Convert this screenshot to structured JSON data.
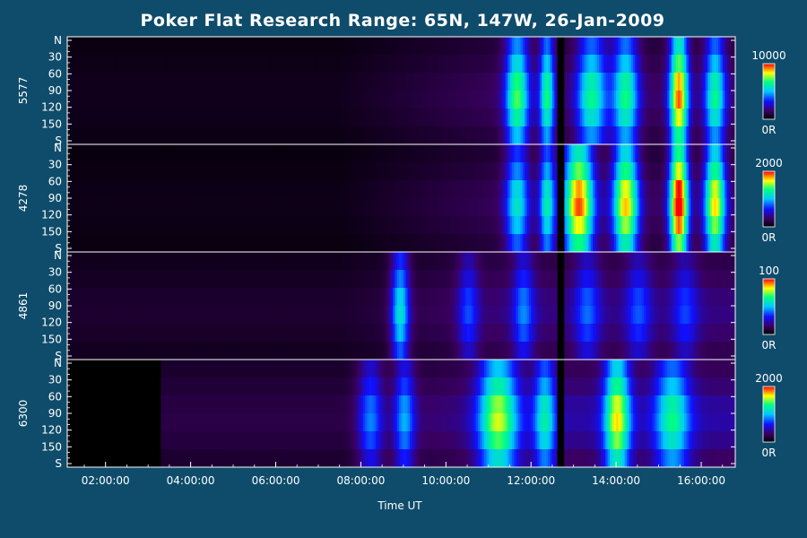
{
  "chart_data": {
    "type": "heatmap",
    "title": "Poker Flat Research Range: 65N, 147W, 26-Jan-2009",
    "xlabel": "Time UT",
    "x_ticks": [
      "02:00:00",
      "04:00:00",
      "06:00:00",
      "08:00:00",
      "10:00:00",
      "12:00:00",
      "14:00:00",
      "16:00:00"
    ],
    "x_tick_hours": [
      2,
      4,
      6,
      8,
      10,
      12,
      14,
      16
    ],
    "xlim_hours": [
      1.1,
      16.8
    ],
    "y_ticks": [
      "N",
      "30",
      "60",
      "90",
      "120",
      "150",
      "S"
    ],
    "y_tick_values": [
      0,
      30,
      60,
      90,
      120,
      150,
      180
    ],
    "ylim": [
      0,
      180
    ],
    "colormap": [
      "#000000",
      "#3a0062",
      "#1010ff",
      "#00c8ff",
      "#00ff80",
      "#ffff00",
      "#ff0000"
    ],
    "data_gap_hours": [
      12.62,
      12.78
    ],
    "panels": [
      {
        "label": "5577",
        "colorbar_max": "10000",
        "colorbar_min": "0R",
        "data_start_hours": 1.1,
        "blobs": [
          {
            "t": 11.65,
            "w": 0.28,
            "v": 0.55
          },
          {
            "t": 12.35,
            "w": 0.18,
            "v": 0.5
          },
          {
            "t": 13.4,
            "w": 0.35,
            "v": 0.48
          },
          {
            "t": 14.2,
            "w": 0.3,
            "v": 0.5
          },
          {
            "t": 15.45,
            "w": 0.22,
            "v": 0.78
          },
          {
            "t": 16.3,
            "w": 0.25,
            "v": 0.48
          }
        ],
        "baseline": 0.05
      },
      {
        "label": "4278",
        "colorbar_max": "2000",
        "colorbar_min": "0R",
        "data_start_hours": 1.1,
        "blobs": [
          {
            "t": 11.65,
            "w": 0.28,
            "v": 0.42
          },
          {
            "t": 12.35,
            "w": 0.18,
            "v": 0.45
          },
          {
            "t": 13.1,
            "w": 0.35,
            "v": 0.8
          },
          {
            "t": 14.2,
            "w": 0.3,
            "v": 0.72
          },
          {
            "t": 15.45,
            "w": 0.22,
            "v": 0.92
          },
          {
            "t": 16.3,
            "w": 0.25,
            "v": 0.7
          }
        ],
        "baseline": 0.04
      },
      {
        "label": "4861",
        "colorbar_max": "100",
        "colorbar_min": "0R",
        "data_start_hours": 1.1,
        "blobs": [
          {
            "t": 8.9,
            "w": 0.22,
            "v": 0.45
          },
          {
            "t": 10.5,
            "w": 0.25,
            "v": 0.22
          },
          {
            "t": 11.8,
            "w": 0.25,
            "v": 0.25
          },
          {
            "t": 13.3,
            "w": 0.3,
            "v": 0.22
          },
          {
            "t": 14.5,
            "w": 0.3,
            "v": 0.2
          },
          {
            "t": 15.6,
            "w": 0.3,
            "v": 0.18
          }
        ],
        "baseline": 0.08
      },
      {
        "label": "6300",
        "colorbar_max": "2000",
        "colorbar_min": "0R",
        "data_start_hours": 3.3,
        "blobs": [
          {
            "t": 8.2,
            "w": 0.3,
            "v": 0.3
          },
          {
            "t": 9.0,
            "w": 0.25,
            "v": 0.32
          },
          {
            "t": 11.2,
            "w": 0.45,
            "v": 0.58
          },
          {
            "t": 12.3,
            "w": 0.25,
            "v": 0.38
          },
          {
            "t": 14.0,
            "w": 0.3,
            "v": 0.62
          },
          {
            "t": 15.3,
            "w": 0.4,
            "v": 0.42
          }
        ],
        "baseline": 0.12
      }
    ]
  }
}
